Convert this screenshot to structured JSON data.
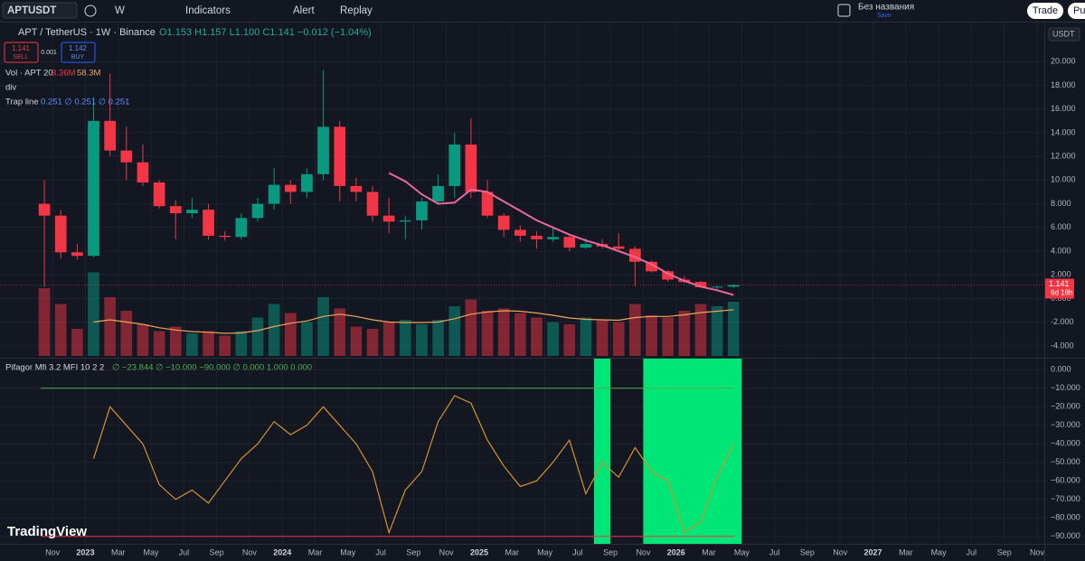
{
  "ui": {
    "symbol": "APTUSDT",
    "interval": "W",
    "indicators": "Indicators",
    "alert": "Alert",
    "replay": "Replay",
    "layout_name": "Без названия",
    "save": "Save",
    "trade": "Trade",
    "publish": "Pub",
    "pair": "APT / TetherUS · 1W · Binance",
    "ohlc": "O1.153 H1.157 L1.100 C1.141 −0.012 (−1.04%)",
    "sell_price": "1.141",
    "sell": "SELL",
    "spread": "0.001",
    "buy_price": "1.142",
    "buy": "BUY",
    "currency": "USDT",
    "countdown": "6d 18h",
    "vol_legend": "Vol · APT 20",
    "vol_last": "3.36M",
    "vol_ma": "58.3M",
    "div": "div",
    "trap": "Trap line",
    "trap_values": "0.251  ∅ 0.251  ∅ 0.251",
    "mfi_title": "Pifagor Mfi 3.2 MFI 10 2 2",
    "mfi_values": "∅ −23.844 ∅ −10.000 −90.000 ∅ 0.000 1.000 0.000",
    "logo": "TradingView"
  },
  "chart_data": {
    "type": "candlestick",
    "grid": true,
    "x": [
      "2022-10",
      "2022-11",
      "2022-12",
      "2023-01",
      "2023-02",
      "2023-03",
      "2023-04",
      "2023-05",
      "2023-06",
      "2023-07",
      "2023-08",
      "2023-09",
      "2023-10",
      "2023-11",
      "2023-12",
      "2024-01",
      "2024-02",
      "2024-03",
      "2024-04",
      "2024-05",
      "2024-06",
      "2024-07",
      "2024-08",
      "2024-09",
      "2024-10",
      "2024-11",
      "2024-12",
      "2025-01",
      "2025-02",
      "2025-03",
      "2025-04",
      "2025-05",
      "2025-06",
      "2025-07",
      "2025-08",
      "2025-09",
      "2025-10",
      "2025-11",
      "2025-12",
      "2026-01",
      "2026-02",
      "2026-03",
      "2026-04"
    ],
    "open": [
      8.0,
      7.0,
      3.9,
      3.6,
      15.0,
      12.5,
      11.5,
      9.8,
      7.8,
      7.2,
      7.5,
      5.3,
      5.2,
      6.8,
      8.0,
      9.6,
      9.0,
      10.5,
      14.5,
      9.5,
      9.0,
      7.0,
      6.5,
      6.6,
      8.2,
      9.5,
      13.0,
      9.0,
      7.0,
      5.8,
      5.3,
      5.0,
      5.2,
      4.3,
      4.6,
      4.4,
      4.2,
      3.1,
      2.3,
      1.6,
      1.4,
      0.95,
      1.0
    ],
    "high": [
      10.0,
      7.5,
      4.6,
      17.0,
      19.0,
      14.5,
      13.0,
      10.0,
      8.3,
      8.5,
      8.0,
      5.7,
      7.2,
      8.5,
      11.0,
      10.0,
      11.0,
      19.3,
      15.0,
      10.2,
      9.5,
      8.5,
      7.0,
      8.5,
      10.5,
      14.0,
      15.2,
      10.0,
      7.2,
      6.2,
      5.7,
      6.1,
      5.4,
      5.1,
      5.0,
      5.5,
      4.4,
      3.2,
      2.4,
      1.9,
      1.5,
      1.1,
      1.2
    ],
    "low": [
      1.0,
      3.4,
      3.3,
      3.5,
      12.0,
      10.0,
      9.5,
      7.6,
      5.0,
      6.8,
      5.0,
      4.9,
      5.0,
      6.5,
      7.5,
      8.0,
      8.5,
      10.0,
      8.2,
      8.2,
      6.5,
      5.5,
      5.0,
      5.8,
      8.0,
      8.5,
      8.5,
      6.8,
      5.2,
      4.8,
      4.2,
      4.8,
      4.0,
      4.2,
      4.2,
      4.1,
      1.0,
      2.2,
      1.4,
      1.3,
      0.9,
      0.8,
      0.9
    ],
    "close": [
      7.0,
      3.9,
      3.6,
      15.0,
      12.5,
      11.5,
      9.8,
      7.8,
      7.2,
      7.5,
      5.3,
      5.2,
      6.8,
      8.0,
      9.6,
      9.0,
      10.5,
      14.5,
      9.5,
      9.0,
      7.0,
      6.5,
      6.6,
      8.2,
      9.5,
      13.0,
      9.0,
      7.0,
      5.8,
      5.3,
      5.0,
      5.2,
      4.3,
      4.6,
      4.4,
      4.2,
      3.1,
      2.3,
      1.6,
      1.4,
      0.95,
      1.0,
      1.141
    ],
    "up_color": "#089981",
    "down_color": "#f23645",
    "xlim": [
      "2022-10",
      "2027-11"
    ],
    "xticks": [
      {
        "value": "2022-11",
        "label": "Nov"
      },
      {
        "value": "2023-01",
        "label": "2023"
      },
      {
        "value": "2023-03",
        "label": "Mar"
      },
      {
        "value": "2023-05",
        "label": "May"
      },
      {
        "value": "2023-07",
        "label": "Jul"
      },
      {
        "value": "2023-09",
        "label": "Sep"
      },
      {
        "value": "2023-11",
        "label": "Nov"
      },
      {
        "value": "2024-01",
        "label": "2024"
      },
      {
        "value": "2024-03",
        "label": "Mar"
      },
      {
        "value": "2024-05",
        "label": "May"
      },
      {
        "value": "2024-07",
        "label": "Jul"
      },
      {
        "value": "2024-09",
        "label": "Sep"
      },
      {
        "value": "2024-11",
        "label": "Nov"
      },
      {
        "value": "2025-01",
        "label": "2025"
      },
      {
        "value": "2025-03",
        "label": "Mar"
      },
      {
        "value": "2025-05",
        "label": "May"
      },
      {
        "value": "2025-07",
        "label": "Jul"
      },
      {
        "value": "2025-09",
        "label": "Sep"
      },
      {
        "value": "2025-11",
        "label": "Nov"
      },
      {
        "value": "2026-01",
        "label": "2026"
      },
      {
        "value": "2026-03",
        "label": "Mar"
      },
      {
        "value": "2026-05",
        "label": "May"
      },
      {
        "value": "2026-07",
        "label": "Jul"
      },
      {
        "value": "2026-09",
        "label": "Sep"
      },
      {
        "value": "2026-11",
        "label": "Nov"
      },
      {
        "value": "2027-01",
        "label": "2027"
      },
      {
        "value": "2027-03",
        "label": "Mar"
      },
      {
        "value": "2027-05",
        "label": "May"
      },
      {
        "value": "2027-07",
        "label": "Jul"
      },
      {
        "value": "2027-09",
        "label": "Sep"
      },
      {
        "value": "2027-11",
        "label": "Nov"
      }
    ],
    "ylim": [
      -5,
      23.3
    ],
    "yticks": [
      {
        "value": -4,
        "label": "-4.000"
      },
      {
        "value": -2,
        "label": "-2.000"
      },
      {
        "value": 0,
        "label": "0.000"
      },
      {
        "value": 2,
        "label": "2.000"
      },
      {
        "value": 4,
        "label": "4.000"
      },
      {
        "value": 6,
        "label": "6.000"
      },
      {
        "value": 8,
        "label": "8.000"
      },
      {
        "value": 10,
        "label": "10.000"
      },
      {
        "value": 12,
        "label": "12.000"
      },
      {
        "value": 14,
        "label": "14.000"
      },
      {
        "value": 16,
        "label": "16.000"
      },
      {
        "value": 18,
        "label": "18.000"
      },
      {
        "value": 20,
        "label": "20.000"
      }
    ],
    "volume_ylim": [
      0,
      400
    ],
    "mfi_ylim": [
      -94,
      6
    ],
    "mfi_yticks": [
      {
        "value": 0,
        "label": "0.000"
      },
      {
        "value": -10,
        "label": "−10.000"
      },
      {
        "value": -20,
        "label": "−20.000"
      },
      {
        "value": -30,
        "label": "−30.000"
      },
      {
        "value": -40,
        "label": "−40.000"
      },
      {
        "value": -50,
        "label": "−50.000"
      },
      {
        "value": -60,
        "label": "−60.000"
      },
      {
        "value": -70,
        "label": "−70.000"
      },
      {
        "value": -80,
        "label": "−80.000"
      },
      {
        "value": -90,
        "label": "−90.000"
      }
    ],
    "mfi_levels": [
      {
        "value": -10,
        "color": "#4caf50"
      },
      {
        "value": -90,
        "color": "#f23645"
      }
    ],
    "highlight_zones": [
      [
        "2025-08",
        "2025-09"
      ],
      [
        "2025-11",
        "2026-05"
      ]
    ],
    "zone_color": "#00e676",
    "series": [
      {
        "type": "line",
        "axis": "price",
        "color": "#e8699a",
        "values": [
          null,
          null,
          null,
          null,
          null,
          null,
          null,
          null,
          null,
          null,
          null,
          null,
          null,
          null,
          null,
          null,
          null,
          null,
          null,
          null,
          null,
          10.6,
          9.9,
          8.8,
          8.0,
          8.1,
          9.2,
          9.0,
          8.2,
          7.4,
          6.6,
          6.0,
          5.4,
          4.9,
          4.5,
          4.0,
          3.5,
          2.9,
          2.1,
          1.5,
          1.0,
          0.7,
          0.3
        ]
      },
      {
        "type": "bar",
        "axis": "volume",
        "values": [
          300,
          230,
          120,
          370,
          260,
          200,
          140,
          110,
          130,
          100,
          110,
          90,
          110,
          170,
          230,
          190,
          150,
          260,
          210,
          130,
          120,
          150,
          160,
          140,
          160,
          220,
          250,
          200,
          210,
          190,
          170,
          150,
          140,
          170,
          160,
          150,
          230,
          180,
          170,
          200,
          230,
          220,
          240
        ]
      },
      {
        "type": "line",
        "axis": "volume",
        "color": "#f0a35a",
        "values": [
          null,
          null,
          null,
          150,
          160,
          150,
          140,
          125,
          115,
          108,
          105,
          100,
          102,
          112,
          130,
          145,
          155,
          175,
          185,
          175,
          160,
          150,
          148,
          148,
          150,
          165,
          185,
          195,
          200,
          198,
          190,
          180,
          168,
          162,
          160,
          158,
          170,
          175,
          175,
          182,
          192,
          198,
          205
        ]
      },
      {
        "type": "line",
        "axis": "mfi",
        "color": "#d4932a",
        "values": [
          null,
          null,
          null,
          -48,
          -20,
          -30,
          -40,
          -62,
          -70,
          -65,
          -72,
          -60,
          -48,
          -40,
          -28,
          -35,
          -30,
          -20,
          -30,
          -40,
          -55,
          -88,
          -65,
          -55,
          -28,
          -14,
          -18,
          -38,
          -52,
          -63,
          -60,
          -50,
          -38,
          -67,
          -50,
          -58,
          -42,
          -55,
          -60,
          -88,
          -82,
          -58,
          -40
        ]
      }
    ]
  }
}
